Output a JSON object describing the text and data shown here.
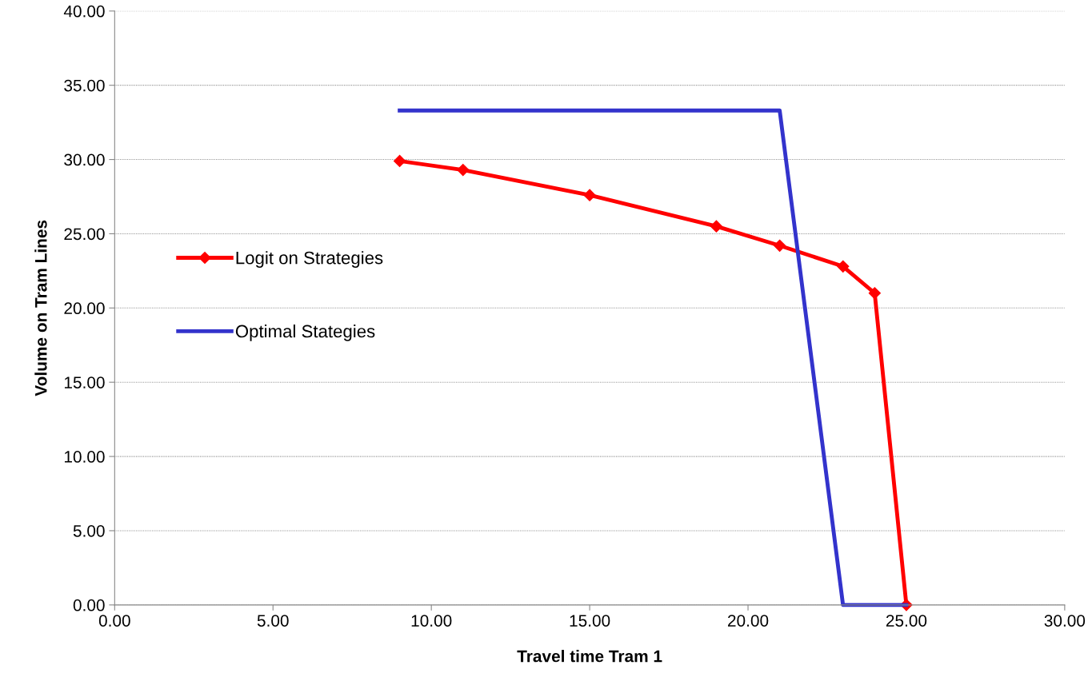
{
  "chart_data": {
    "type": "line",
    "xlabel": "Travel time Tram 1",
    "ylabel": "Volume on Tram Lines",
    "x": [
      9,
      11,
      15,
      19,
      21,
      23,
      24,
      25
    ],
    "series": [
      {
        "name": "Logit on Strategies",
        "color": "#ff0000",
        "marker": "diamond",
        "values": [
          29.9,
          29.3,
          27.6,
          25.5,
          24.2,
          22.8,
          21.0,
          0.0
        ]
      },
      {
        "name": "Optimal Stategies",
        "color": "#3333cc",
        "marker": "none",
        "values": [
          33.3,
          33.3,
          33.3,
          33.3,
          33.3,
          0.0,
          0.0,
          0.0
        ]
      }
    ],
    "xlim": [
      0,
      30
    ],
    "ylim": [
      0,
      40
    ],
    "xticks": [
      {
        "value": 0,
        "label": "0.00"
      },
      {
        "value": 5,
        "label": "5.00"
      },
      {
        "value": 10,
        "label": "10.00"
      },
      {
        "value": 15,
        "label": "15.00"
      },
      {
        "value": 20,
        "label": "20.00"
      },
      {
        "value": 25,
        "label": "25.00"
      },
      {
        "value": 30,
        "label": "30.00"
      }
    ],
    "yticks": [
      {
        "value": 0,
        "label": "0.00"
      },
      {
        "value": 5,
        "label": "5.00"
      },
      {
        "value": 10,
        "label": "10.00"
      },
      {
        "value": 15,
        "label": "15.00"
      },
      {
        "value": 20,
        "label": "20.00"
      },
      {
        "value": 25,
        "label": "25.00"
      },
      {
        "value": 30,
        "label": "30.00"
      },
      {
        "value": 35,
        "label": "35.00"
      },
      {
        "value": 40,
        "label": "40.00"
      }
    ],
    "grid": "y",
    "legend": "center left",
    "line_style": "solid"
  }
}
